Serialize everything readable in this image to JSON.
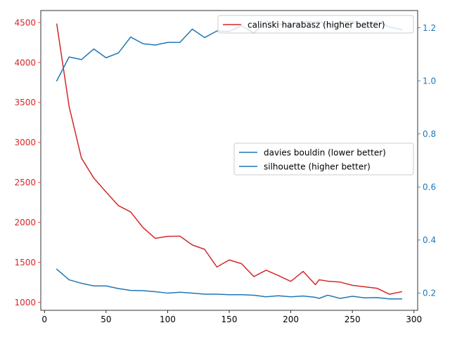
{
  "chart_data": {
    "type": "line",
    "title": "",
    "xlabel": "",
    "ylabel_left": "",
    "ylabel_right": "",
    "grid": false,
    "x_axis": {
      "range": [
        -3,
        303
      ],
      "ticks": [
        0,
        50,
        100,
        150,
        200,
        250,
        300
      ]
    },
    "left_axis": {
      "range": [
        900,
        4650
      ],
      "ticks": [
        1000,
        1500,
        2000,
        2500,
        3000,
        3500,
        4000,
        4500
      ],
      "color": "#d62728"
    },
    "right_axis": {
      "range": [
        0.135,
        1.265
      ],
      "ticks": [
        0.2,
        0.4,
        0.6,
        0.8,
        1.0,
        1.2
      ],
      "tick_labels": [
        "0.2",
        "0.4",
        "0.6",
        "0.8",
        "1.0",
        "1.2"
      ],
      "color": "#1f77b4"
    },
    "x": [
      10,
      20,
      30,
      40,
      50,
      60,
      70,
      80,
      90,
      100,
      110,
      120,
      130,
      140,
      150,
      160,
      170,
      180,
      190,
      200,
      210,
      220,
      223,
      230,
      240,
      250,
      260,
      270,
      280,
      290
    ],
    "series": [
      {
        "name": "calinski harabasz (higher better)",
        "axis": "left",
        "color": "#d62728",
        "values": [
          4480,
          3450,
          2805,
          2555,
          2380,
          2210,
          2130,
          1935,
          1800,
          1825,
          1828,
          1718,
          1663,
          1442,
          1530,
          1483,
          1322,
          1402,
          1334,
          1262,
          1387,
          1221,
          1282,
          1265,
          1253,
          1213,
          1194,
          1176,
          1101,
          1133
        ]
      },
      {
        "name": "davies bouldin (lower better)",
        "axis": "right",
        "color": "#1f77b4",
        "values": [
          1.0,
          1.09,
          1.08,
          1.12,
          1.087,
          1.105,
          1.165,
          1.14,
          1.135,
          1.145,
          1.145,
          1.195,
          1.163,
          1.188,
          1.186,
          1.208,
          1.18,
          1.225,
          1.215,
          1.205,
          1.222,
          1.222,
          1.225,
          1.21,
          1.22,
          1.225,
          1.2,
          1.226,
          1.203,
          1.193
        ]
      },
      {
        "name": "silhouette (higher better)",
        "axis": "right",
        "color": "#1f77b4",
        "values": [
          0.29,
          0.25,
          0.237,
          0.227,
          0.227,
          0.217,
          0.21,
          0.209,
          0.205,
          0.2,
          0.203,
          0.2,
          0.196,
          0.196,
          0.194,
          0.194,
          0.192,
          0.186,
          0.19,
          0.186,
          0.189,
          0.184,
          0.18,
          0.192,
          0.18,
          0.188,
          0.182,
          0.183,
          0.178,
          0.178
        ]
      }
    ],
    "legends": [
      {
        "placement": "upper-right",
        "entries": [
          "calinski harabasz (higher better)"
        ]
      },
      {
        "placement": "center-right",
        "entries": [
          "davies bouldin (lower better)",
          "silhouette (higher better)"
        ]
      }
    ]
  }
}
